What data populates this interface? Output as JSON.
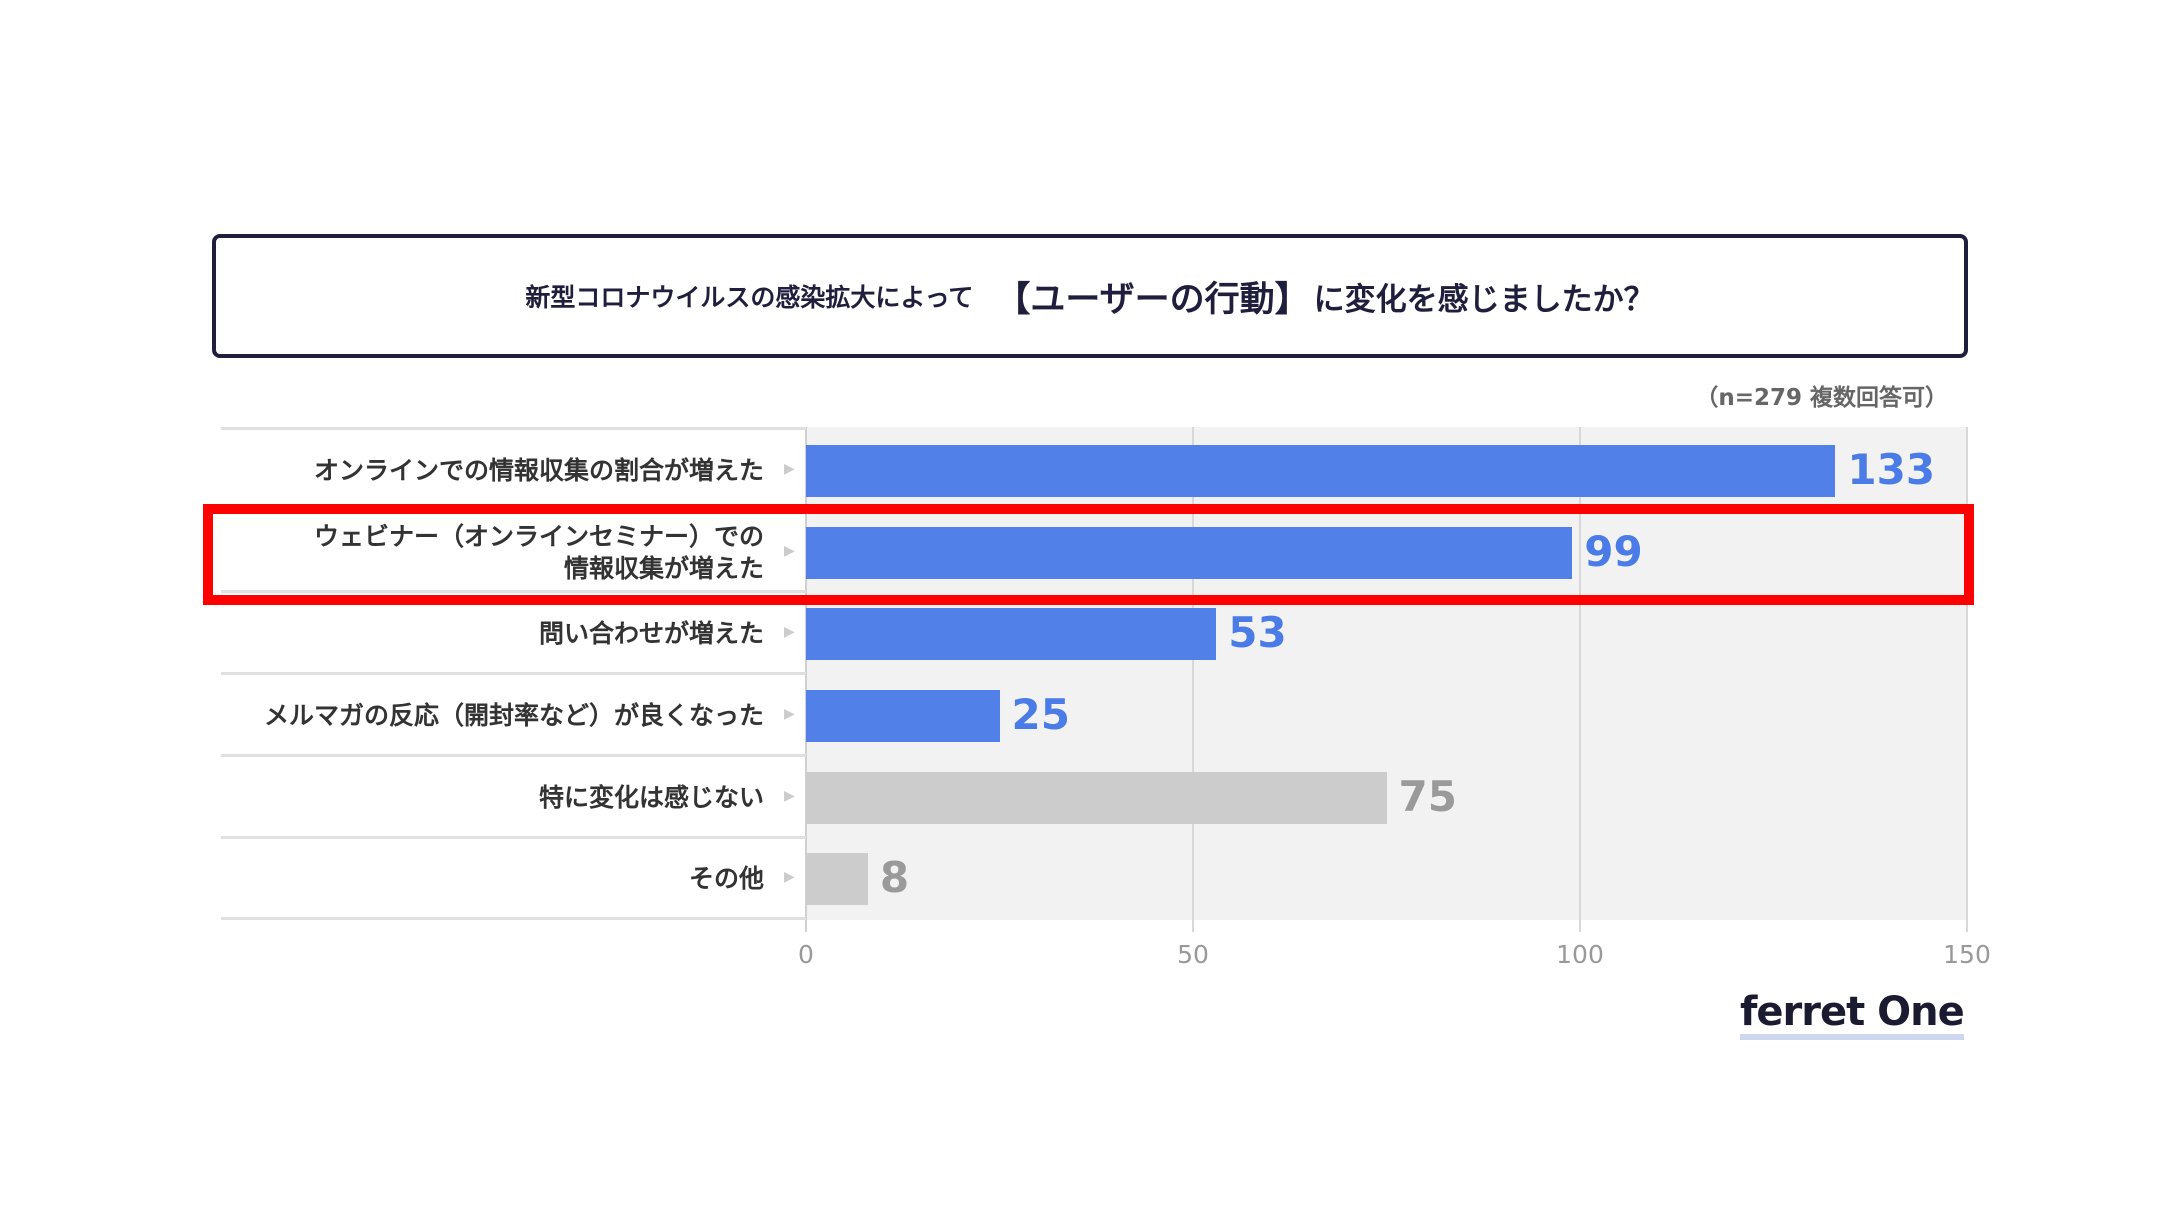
{
  "title": {
    "prefix": "新型コロナウイルスの感染拡大によって",
    "emphasis": "【ユーザーの行動】",
    "suffix": "に変化を感じましたか？"
  },
  "note": "（n=279 複数回答可）",
  "logo": "ferret One",
  "colors": {
    "highlight": "#5080e8",
    "other": "#cccccc",
    "highlight_text": "#4a7be6",
    "other_text": "#9a9a9a",
    "annotation": "#ff0000"
  },
  "chart_data": {
    "type": "bar",
    "orientation": "horizontal",
    "title": "新型コロナウイルスの感染拡大によって【ユーザーの行動】に変化を感じましたか？",
    "categories": [
      "オンラインでの情報収集の割合が増えた",
      "ウェビナー（オンラインセミナー）での\n情報収集が増えた",
      "問い合わせが増えた",
      "メルマガの反応（開封率など）が良くなった",
      "特に変化は感じない",
      "その他"
    ],
    "values": [
      133,
      99,
      53,
      25,
      75,
      8
    ],
    "bar_color_group": [
      "highlight",
      "highlight",
      "highlight",
      "highlight",
      "other",
      "other"
    ],
    "xlim": [
      0,
      150
    ],
    "xticks": [
      "0",
      "50",
      "100",
      "150"
    ],
    "grid": true,
    "highlighted_category_index": 1
  }
}
